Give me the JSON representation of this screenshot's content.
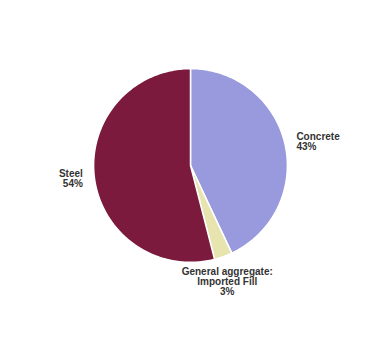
{
  "chart_data": {
    "type": "pie",
    "categories": [
      "Concrete\n43%",
      "General aggregate:\nImported Fill\n3%",
      "Steel\n54%"
    ],
    "values": [
      43,
      3,
      54
    ],
    "colors": [
      "#9999dd",
      "#e8e4b0",
      "#7b1a3c"
    ]
  }
}
